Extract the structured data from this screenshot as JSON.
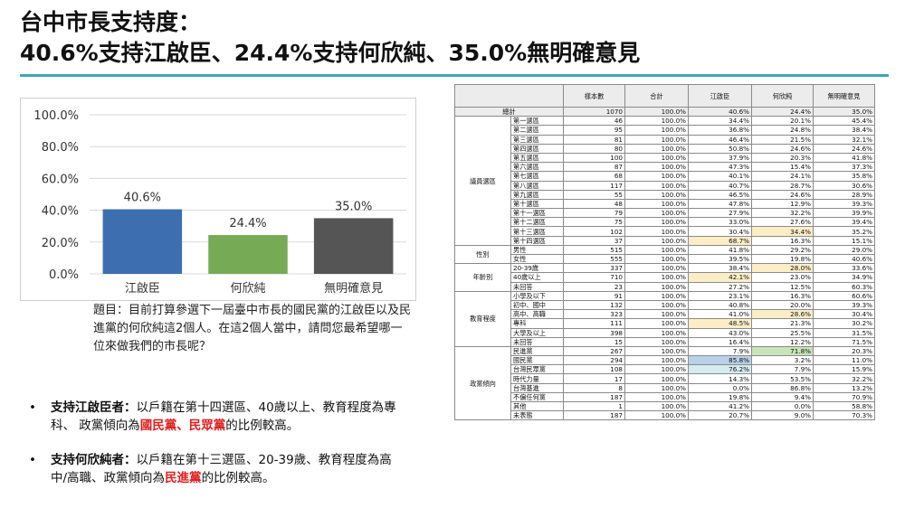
{
  "title": {
    "line1": "台中市長支持度：",
    "line2": "40.6%支持江啟臣、24.4%支持何欣純、35.0%無明確意見"
  },
  "chart_data": {
    "type": "bar",
    "categories": [
      "江啟臣",
      "何欣純",
      "無明確意見"
    ],
    "values": [
      40.6,
      24.4,
      35.0
    ],
    "value_labels": [
      "40.6%",
      "24.4%",
      "35.0%"
    ],
    "colors": [
      "#3d6fb0",
      "#77aa55",
      "#555555"
    ],
    "ylim": [
      0,
      100
    ],
    "yticks": [
      "0.0%",
      "20.0%",
      "40.0%",
      "60.0%",
      "80.0%",
      "100.0%"
    ],
    "grid": true
  },
  "question": "題目：目前打算參選下一屆臺中市長的國民黨的江啟臣以及民進黨的何欣純這2個人。在這2個人當中，請問您最希望哪一位來做我們的市長呢？",
  "bullets": [
    {
      "dot": "•",
      "lead": "支持江啟臣者：",
      "text1": "以戶籍在第十四選區、40歲以上、教育程度為專科、 政黨傾向為",
      "red": "國民黨、民眾黨",
      "text2": "的比例較高。"
    },
    {
      "dot": "•",
      "lead": "支持何欣純者：",
      "text1": "以戶籍在第十三選區、20-39歲、教育程度為高中/高職、政黨傾向為",
      "red": "民進黨",
      "text2": "的比例較高。"
    }
  ],
  "table": {
    "headers": [
      "樣本數",
      "合計",
      "江啟臣",
      "何欣純",
      "無明確意見"
    ],
    "total": {
      "label": "總計",
      "cells": [
        "1070",
        "100.0%",
        "40.6%",
        "24.4%",
        "35.0%"
      ]
    },
    "groups": [
      {
        "name": "議員選區",
        "rows": [
          {
            "label": "第一選區",
            "cells": [
              "46",
              "100.0%",
              "34.4%",
              "20.1%",
              "45.4%"
            ]
          },
          {
            "label": "第二選區",
            "cells": [
              "95",
              "100.0%",
              "36.8%",
              "24.8%",
              "38.4%"
            ]
          },
          {
            "label": "第三選區",
            "cells": [
              "81",
              "100.0%",
              "46.4%",
              "21.5%",
              "32.1%"
            ]
          },
          {
            "label": "第四選區",
            "cells": [
              "80",
              "100.0%",
              "50.8%",
              "24.6%",
              "24.6%"
            ]
          },
          {
            "label": "第五選區",
            "cells": [
              "100",
              "100.0%",
              "37.9%",
              "20.3%",
              "41.8%"
            ]
          },
          {
            "label": "第六選區",
            "cells": [
              "87",
              "100.0%",
              "47.3%",
              "15.4%",
              "37.3%"
            ]
          },
          {
            "label": "第七選區",
            "cells": [
              "68",
              "100.0%",
              "40.1%",
              "24.1%",
              "35.8%"
            ]
          },
          {
            "label": "第八選區",
            "cells": [
              "117",
              "100.0%",
              "40.7%",
              "28.7%",
              "30.6%"
            ]
          },
          {
            "label": "第九選區",
            "cells": [
              "55",
              "100.0%",
              "46.5%",
              "24.6%",
              "28.9%"
            ]
          },
          {
            "label": "第十選區",
            "cells": [
              "48",
              "100.0%",
              "47.8%",
              "12.9%",
              "39.3%"
            ]
          },
          {
            "label": "第十一選區",
            "cells": [
              "79",
              "100.0%",
              "27.9%",
              "32.2%",
              "39.9%"
            ]
          },
          {
            "label": "第十二選區",
            "cells": [
              "75",
              "100.0%",
              "33.0%",
              "27.6%",
              "39.4%"
            ]
          },
          {
            "label": "第十三選區",
            "cells": [
              "102",
              "100.0%",
              "30.4%",
              "34.4%",
              "35.2%"
            ],
            "hl": [
              null,
              null,
              null,
              "y",
              null
            ]
          },
          {
            "label": "第十四選區",
            "cells": [
              "37",
              "100.0%",
              "68.7%",
              "16.3%",
              "15.1%"
            ],
            "hl": [
              null,
              null,
              "y",
              null,
              null
            ]
          }
        ]
      },
      {
        "name": "性別",
        "rows": [
          {
            "label": "男性",
            "cells": [
              "515",
              "100.0%",
              "41.8%",
              "29.2%",
              "29.0%"
            ]
          },
          {
            "label": "女性",
            "cells": [
              "555",
              "100.0%",
              "39.5%",
              "19.8%",
              "40.6%"
            ]
          }
        ]
      },
      {
        "name": "年齡別",
        "rows": [
          {
            "label": "20-39歲",
            "cells": [
              "337",
              "100.0%",
              "38.4%",
              "28.0%",
              "33.6%"
            ],
            "hl": [
              null,
              null,
              null,
              "y",
              null
            ]
          },
          {
            "label": "40歲以上",
            "cells": [
              "710",
              "100.0%",
              "42.1%",
              "23.0%",
              "34.9%"
            ],
            "hl": [
              null,
              null,
              "y",
              null,
              null
            ]
          },
          {
            "label": "未回答",
            "cells": [
              "23",
              "100.0%",
              "27.2%",
              "12.5%",
              "60.3%"
            ]
          }
        ]
      },
      {
        "name": "教育程度",
        "rows": [
          {
            "label": "小學及以下",
            "cells": [
              "91",
              "100.0%",
              "23.1%",
              "16.3%",
              "60.6%"
            ]
          },
          {
            "label": "初中、國中",
            "cells": [
              "132",
              "100.0%",
              "40.8%",
              "20.0%",
              "39.3%"
            ]
          },
          {
            "label": "高中、高職",
            "cells": [
              "323",
              "100.0%",
              "41.0%",
              "28.6%",
              "30.4%"
            ],
            "hl": [
              null,
              null,
              null,
              "y",
              null
            ]
          },
          {
            "label": "專科",
            "cells": [
              "111",
              "100.0%",
              "48.5%",
              "21.3%",
              "30.2%"
            ],
            "hl": [
              null,
              null,
              "y",
              null,
              null
            ]
          },
          {
            "label": "大學及以上",
            "cells": [
              "398",
              "100.0%",
              "43.0%",
              "25.5%",
              "31.5%"
            ]
          },
          {
            "label": "未回答",
            "cells": [
              "15",
              "100.0%",
              "16.4%",
              "12.2%",
              "71.5%"
            ]
          }
        ]
      },
      {
        "name": "政黨傾向",
        "rows": [
          {
            "label": "民進黨",
            "cells": [
              "267",
              "100.0%",
              "7.9%",
              "71.8%",
              "20.3%"
            ],
            "hl": [
              null,
              null,
              null,
              "g",
              null
            ]
          },
          {
            "label": "國民黨",
            "cells": [
              "294",
              "100.0%",
              "85.8%",
              "3.2%",
              "11.0%"
            ],
            "hl": [
              null,
              null,
              "b",
              null,
              null
            ]
          },
          {
            "label": "台灣民眾黨",
            "cells": [
              "108",
              "100.0%",
              "76.2%",
              "7.9%",
              "15.9%"
            ],
            "hl": [
              null,
              null,
              "t",
              null,
              null
            ]
          },
          {
            "label": "時代力量",
            "cells": [
              "17",
              "100.0%",
              "14.3%",
              "53.5%",
              "32.2%"
            ]
          },
          {
            "label": "台灣基進",
            "cells": [
              "8",
              "100.0%",
              "0.0%",
              "86.8%",
              "13.2%"
            ]
          },
          {
            "label": "不偏任何黨",
            "cells": [
              "187",
              "100.0%",
              "19.8%",
              "9.4%",
              "70.9%"
            ]
          },
          {
            "label": "其他",
            "cells": [
              "1",
              "100.0%",
              "41.2%",
              "0.0%",
              "58.8%"
            ]
          },
          {
            "label": "未表態",
            "cells": [
              "187",
              "100.0%",
              "20.7%",
              "9.0%",
              "70.3%"
            ]
          }
        ]
      }
    ]
  }
}
